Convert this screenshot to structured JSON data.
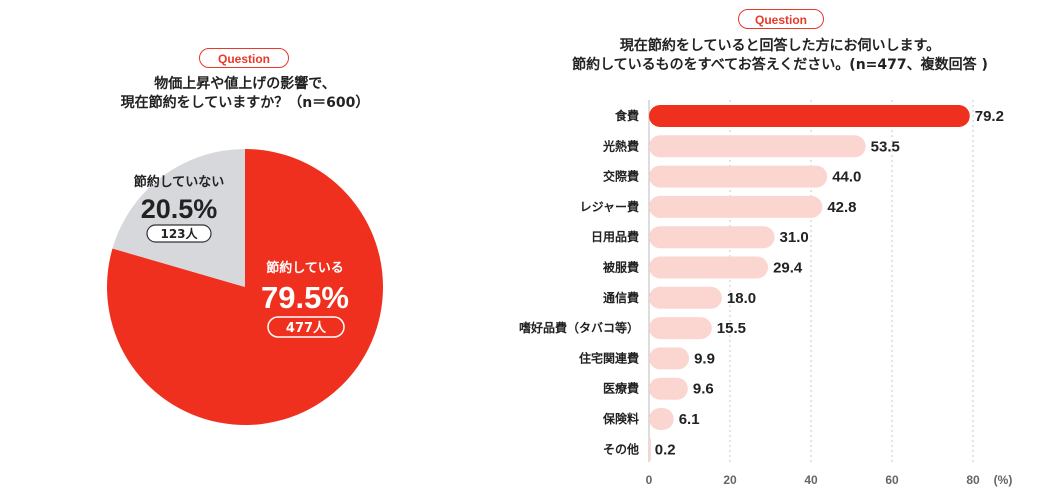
{
  "left": {
    "badge": "Question",
    "question_line1": "物価上昇や値上げの影響で、",
    "question_line2": "現在節約をしていますか？（n＝600）"
  },
  "right": {
    "badge": "Question",
    "question_line1": "現在節約をしていると回答した方にお伺いします。",
    "question_line2": "節約しているものをすべてお答えください。(n=477、複数回答 )"
  },
  "colors": {
    "accent": "#f0301e",
    "pie_other": "#d6d8dc",
    "bar_light": "#fbd6d0",
    "text": "#222222"
  },
  "chart_data": [
    {
      "type": "pie",
      "title": "物価上昇や値上げの影響で、現在節約をしていますか？（n＝600）",
      "slices": [
        {
          "label": "節約している",
          "percent": 79.5,
          "percent_text": "79.5%",
          "count_text": "477人"
        },
        {
          "label": "節約していない",
          "percent": 20.5,
          "percent_text": "20.5%",
          "count_text": "123人"
        }
      ]
    },
    {
      "type": "bar",
      "orientation": "horizontal",
      "title": "現在節約をしていると回答した方にお伺いします。節約しているものをすべてお答えください。(n=477、複数回答 )",
      "categories": [
        "食費",
        "光熱費",
        "交際費",
        "レジャー費",
        "日用品費",
        "被服費",
        "通信費",
        "嗜好品費（タバコ等）",
        "住宅関連費",
        "医療費",
        "保険料",
        "その他"
      ],
      "values": [
        79.2,
        53.5,
        44.0,
        42.8,
        31.0,
        29.4,
        18.0,
        15.5,
        9.9,
        9.6,
        6.1,
        0.2
      ],
      "value_labels": [
        "79.2",
        "53.5",
        "44.0",
        "42.8",
        "31.0",
        "29.4",
        "18.0",
        "15.5",
        "9.9",
        "9.6",
        "6.1",
        "0.2"
      ],
      "xlim": [
        0,
        80
      ],
      "xticks": [
        "0",
        "20",
        "40",
        "60",
        "80"
      ],
      "unit": "(%)",
      "grid": true
    }
  ]
}
